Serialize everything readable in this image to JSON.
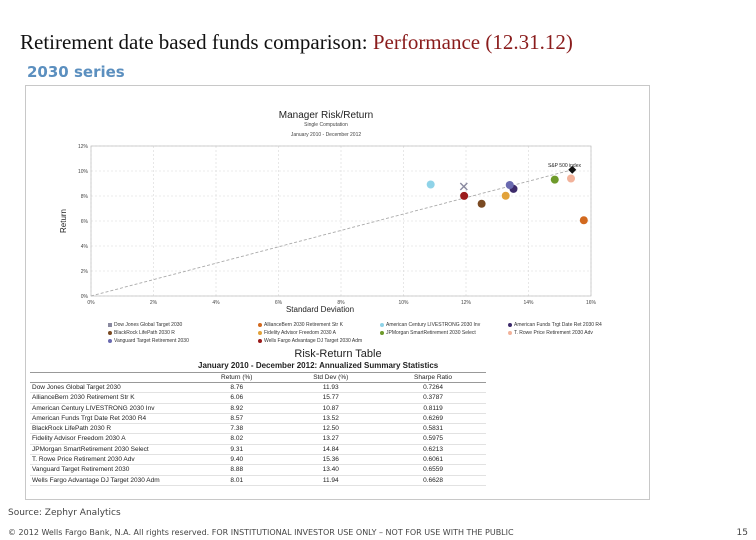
{
  "header": {
    "title": "Retirement date based funds comparison:",
    "title_accent": "Performance (12.31.12)",
    "subtitle": "2030 series"
  },
  "chart_data": [
    {
      "type": "scatter",
      "title": "Manager Risk/Return",
      "subtitle_lines": [
        "Single Computation",
        "January 2010 - December 2012"
      ],
      "xlabel": "Standard Deviation",
      "ylabel": "Return",
      "xlim": [
        0,
        16
      ],
      "ylim": [
        0,
        12
      ],
      "x_ticks": [
        "0%",
        "2%",
        "4%",
        "6%",
        "8%",
        "10%",
        "12%",
        "14%",
        "16%"
      ],
      "y_ticks": [
        "0%",
        "2%",
        "4%",
        "6%",
        "8%",
        "10%",
        "12%"
      ],
      "grid": true,
      "legend_position": "bottom",
      "series": [
        {
          "name": "Dow Jones Global Target 2030",
          "x": 11.93,
          "y": 8.76,
          "color": "#8a8aa0",
          "marker": "x"
        },
        {
          "name": "AllianceBern 2030 Retirement Str K",
          "x": 15.77,
          "y": 6.06,
          "color": "#d2691e",
          "marker": "circle"
        },
        {
          "name": "American Century LIVESTRONG 2030 Inv",
          "x": 10.87,
          "y": 8.92,
          "color": "#8fd3e8",
          "marker": "circle"
        },
        {
          "name": "American Funds Trgt Date Ret 2030 R4",
          "x": 13.52,
          "y": 8.57,
          "color": "#3d2b6b",
          "marker": "circle"
        },
        {
          "name": "BlackRock LifePath 2030 R",
          "x": 12.5,
          "y": 7.38,
          "color": "#7a4a22",
          "marker": "circle"
        },
        {
          "name": "Fidelity Advisor Freedom 2030 A",
          "x": 13.27,
          "y": 8.02,
          "color": "#e2a23a",
          "marker": "circle"
        },
        {
          "name": "JPMorgan SmartRetirement 2030 Select",
          "x": 14.84,
          "y": 9.31,
          "color": "#6e9a2a",
          "marker": "circle"
        },
        {
          "name": "T. Rowe Price Retirement 2030 Adv",
          "x": 15.36,
          "y": 9.4,
          "color": "#f2b29a",
          "marker": "circle"
        },
        {
          "name": "Vanguard Target Retirement 2030",
          "x": 13.4,
          "y": 8.88,
          "color": "#6a6ab0",
          "marker": "circle"
        },
        {
          "name": "Wells Fargo Advantage DJ Target 2030 Adm",
          "x": 11.94,
          "y": 8.01,
          "color": "#9b1b1b",
          "marker": "circle"
        },
        {
          "name": "S&P 500 index",
          "x": 15.4,
          "y": 10.1,
          "color": "#111111",
          "marker": "diamond"
        }
      ],
      "market_line": {
        "from": [
          0,
          0
        ],
        "to": [
          15.4,
          10.1
        ]
      }
    },
    {
      "type": "table",
      "title": "Risk-Return Table",
      "subtitle": "January 2010 - December 2012:  Annualized Summary Statistics",
      "columns": [
        "",
        "Return (%)",
        "Std Dev (%)",
        "Sharpe Ratio"
      ],
      "rows": [
        [
          "Dow Jones Global Target 2030",
          "8.76",
          "11.93",
          "0.7264"
        ],
        [
          "AllianceBern 2030 Retirement Str K",
          "6.06",
          "15.77",
          "0.3787"
        ],
        [
          "American Century LIVESTRONG 2030 Inv",
          "8.92",
          "10.87",
          "0.8119"
        ],
        [
          "American Funds Trgt Date Ret 2030 R4",
          "8.57",
          "13.52",
          "0.6269"
        ],
        [
          "BlackRock LifePath 2030 R",
          "7.38",
          "12.50",
          "0.5831"
        ],
        [
          "Fidelity Advisor Freedom 2030 A",
          "8.02",
          "13.27",
          "0.5975"
        ],
        [
          "JPMorgan SmartRetirement 2030 Select",
          "9.31",
          "14.84",
          "0.6213"
        ],
        [
          "T. Rowe Price Retirement 2030 Adv",
          "9.40",
          "15.36",
          "0.6061"
        ],
        [
          "Vanguard Target Retirement 2030",
          "8.88",
          "13.40",
          "0.6559"
        ],
        [
          "Wells Fargo Advantage DJ Target 2030 Adm",
          "8.01",
          "11.94",
          "0.6628"
        ]
      ]
    }
  ],
  "footer": {
    "source": "Source: Zephyr Analytics",
    "copyright": "© 2012 Wells Fargo Bank, N.A. All rights reserved. FOR INSTITUTIONAL INVESTOR USE ONLY – NOT FOR USE WITH THE PUBLIC",
    "page_number": "15"
  }
}
